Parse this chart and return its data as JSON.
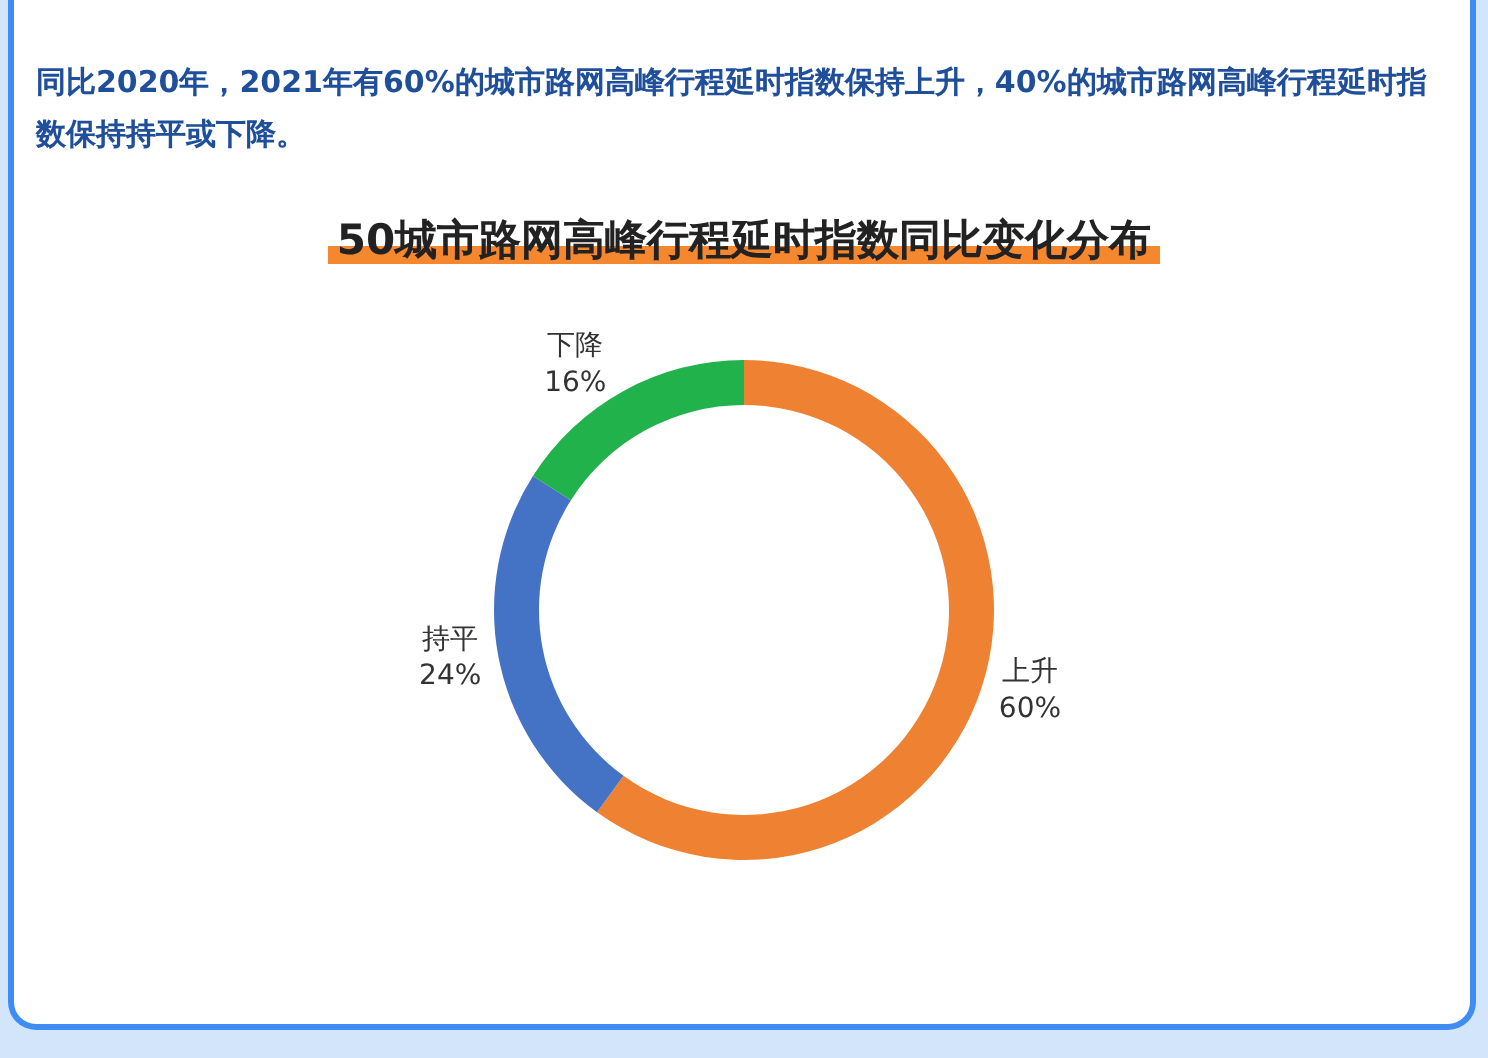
{
  "chart_data": {
    "type": "donut",
    "title": "50城市路网高峰行程延时指数同比变化分布",
    "subtitle": "同比2020年，2021年有60%的城市路网高峰行程延时指数保持上升，40%的城市路网高峰行程延时指数保持持平或下降。",
    "categories": [
      "上升",
      "持平",
      "下降"
    ],
    "values": [
      60,
      24,
      16
    ],
    "value_labels": [
      "60%",
      "24%",
      "16%"
    ],
    "colors": [
      "#ef8232",
      "#4473c5",
      "#21b24b"
    ],
    "legend": false
  }
}
